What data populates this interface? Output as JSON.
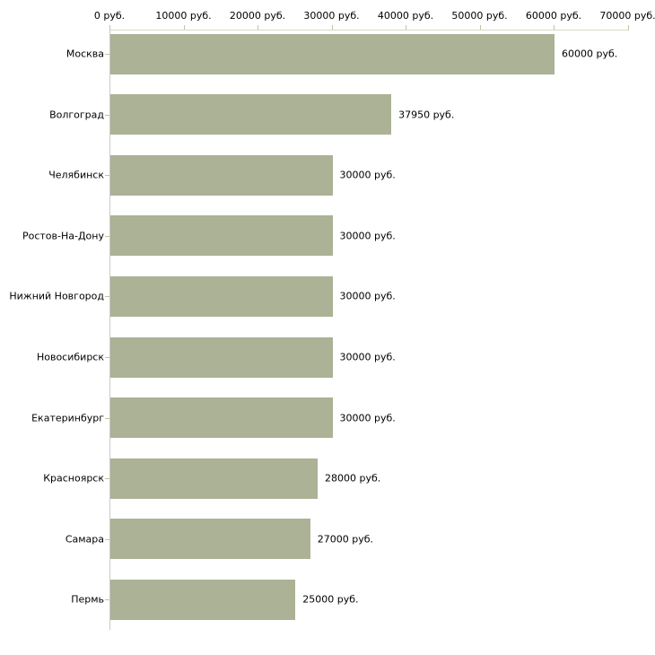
{
  "chart_data": {
    "type": "bar",
    "orientation": "horizontal",
    "title": "",
    "xlabel": "",
    "ylabel": "",
    "unit": "руб.",
    "categories": [
      "Москва",
      "Волгоград",
      "Челябинск",
      "Ростов-На-Дону",
      "Нижний Новгород",
      "Новосибирск",
      "Екатеринбург",
      "Красноярск",
      "Самара",
      "Пермь"
    ],
    "values": [
      60000,
      37950,
      30000,
      30000,
      30000,
      30000,
      30000,
      28000,
      27000,
      25000
    ],
    "value_labels": [
      "60000 руб.",
      "37950 руб.",
      "30000 руб.",
      "30000 руб.",
      "30000 руб.",
      "30000 руб.",
      "30000 руб.",
      "28000 руб.",
      "27000 руб.",
      "25000 руб."
    ],
    "x_axis": {
      "position": "top",
      "range": [
        0,
        70000
      ],
      "tick_values": [
        0,
        10000,
        20000,
        30000,
        40000,
        50000,
        60000,
        70000
      ],
      "tick_labels": [
        "0 руб.",
        "10000 руб.",
        "20000 руб.",
        "30000 руб.",
        "40000 руб.",
        "50000 руб.",
        "60000 руб.",
        "70000 руб."
      ]
    },
    "grid": false,
    "legend": false,
    "colors": {
      "bar_fill": "#abb295",
      "x_axis_line": "#d8d8c8",
      "y_axis_line": "#c9c9c9",
      "tick_mark": "#c2c2a0",
      "text": "#000000",
      "background": "#ffffff"
    }
  }
}
